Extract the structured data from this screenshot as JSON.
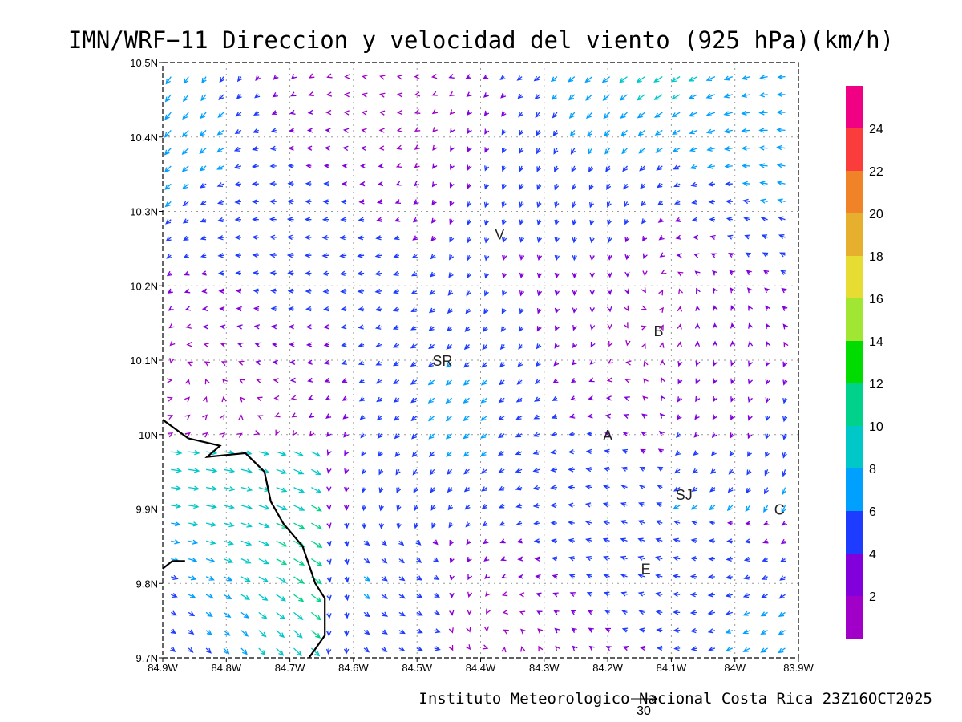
{
  "title": "IMN/WRF−11 Direccion y velocidad del viento (925 hPa)(km/h)",
  "credit": "Instituto Meteorologico Nacional Costa Rica 23Z16OCT2025",
  "lon_labels": [
    "84.9W",
    "84.8W",
    "84.7W",
    "84.6W",
    "84.5W",
    "84.4W",
    "84.3W",
    "84.2W",
    "84.1W",
    "84W",
    "83.9W"
  ],
  "lat_labels": [
    "10.5N",
    "10.4N",
    "10.3N",
    "10.2N",
    "10.1N",
    "10N",
    "9.9N",
    "9.8N",
    "9.7N"
  ],
  "lon_range": [
    -84.9,
    -83.9
  ],
  "lat_range": [
    9.7,
    10.5
  ],
  "cities": [
    {
      "label": "V",
      "lon": -84.37,
      "lat": 10.27
    },
    {
      "label": "B",
      "lon": -84.12,
      "lat": 10.14
    },
    {
      "label": "SR",
      "lon": -84.46,
      "lat": 10.1
    },
    {
      "label": "A",
      "lon": -84.2,
      "lat": 10.0
    },
    {
      "label": "I",
      "lon": -83.9,
      "lat": 10.0
    },
    {
      "label": "SJ",
      "lon": -84.08,
      "lat": 9.92
    },
    {
      "label": "C",
      "lon": -83.93,
      "lat": 9.9
    },
    {
      "label": "E",
      "lon": -84.14,
      "lat": 9.82
    }
  ],
  "colorbar": {
    "levels": [
      2,
      4,
      6,
      8,
      10,
      12,
      14,
      16,
      18,
      20,
      22,
      24
    ],
    "colors": [
      "#a000c8",
      "#8200dc",
      "#1e3cff",
      "#00a0ff",
      "#00c8c8",
      "#00d28c",
      "#00dc00",
      "#a0e632",
      "#e6dc32",
      "#e6af2d",
      "#f08228",
      "#fa3c3c",
      "#f00082"
    ]
  },
  "reference_vector": {
    "label": "30"
  },
  "coastline": [
    [
      -84.9,
      10.02
    ],
    [
      -84.86,
      9.995
    ],
    [
      -84.81,
      9.985
    ],
    [
      -84.83,
      9.97
    ],
    [
      -84.77,
      9.975
    ],
    [
      -84.74,
      9.95
    ],
    [
      -84.73,
      9.91
    ],
    [
      -84.71,
      9.88
    ],
    [
      -84.68,
      9.85
    ],
    [
      -84.66,
      9.8
    ],
    [
      -84.645,
      9.78
    ],
    [
      -84.645,
      9.73
    ],
    [
      -84.67,
      9.7
    ]
  ],
  "coastline2": [
    [
      -84.9,
      9.82
    ],
    [
      -84.885,
      9.83
    ],
    [
      -84.865,
      9.83
    ]
  ]
}
